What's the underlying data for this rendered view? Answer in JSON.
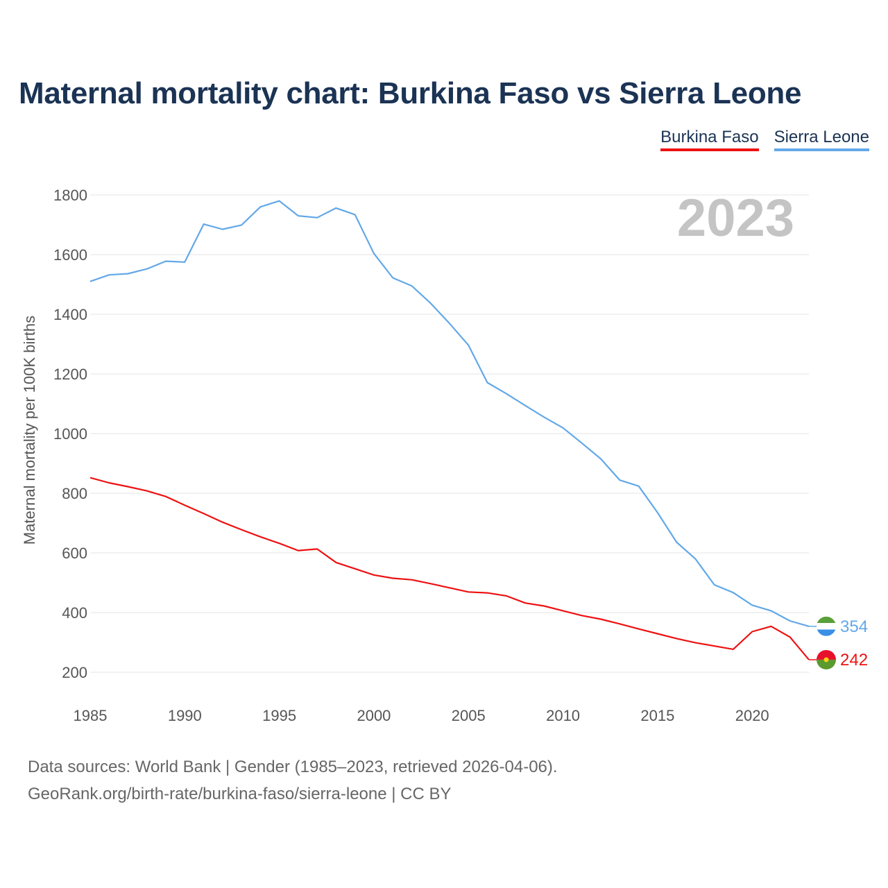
{
  "title": "Maternal mortality chart: Burkina Faso vs Sierra Leone",
  "legend": [
    {
      "label": "Burkina Faso",
      "color": "#ee1111"
    },
    {
      "label": "Sierra Leone",
      "color": "#62a8e8"
    }
  ],
  "year_label": "2023",
  "footer": {
    "line1": "Data sources: World Bank | Gender (1985–2023, retrieved 2026-04-06).",
    "line2": "GeoRank.org/birth-rate/burkina-faso/sierra-leone | CC BY"
  },
  "chart_data": {
    "type": "line",
    "title": "Maternal mortality chart: Burkina Faso vs Sierra Leone",
    "xlabel": "",
    "ylabel": "Maternal mortality per 100K births",
    "xlim": [
      1985,
      2023
    ],
    "ylim": [
      200,
      1800
    ],
    "x_ticks": [
      1985,
      1990,
      1995,
      2000,
      2005,
      2010,
      2015,
      2020
    ],
    "y_ticks": [
      200,
      400,
      600,
      800,
      1000,
      1200,
      1400,
      1600,
      1800
    ],
    "x": [
      1985,
      1986,
      1987,
      1988,
      1989,
      1990,
      1991,
      1992,
      1993,
      1994,
      1995,
      1996,
      1997,
      1998,
      1999,
      2000,
      2001,
      2002,
      2003,
      2004,
      2005,
      2006,
      2007,
      2008,
      2009,
      2010,
      2011,
      2012,
      2013,
      2014,
      2015,
      2016,
      2017,
      2018,
      2019,
      2020,
      2021,
      2022,
      2023
    ],
    "series": [
      {
        "name": "Sierra Leone",
        "color": "#62a8e8",
        "end_label": "354",
        "values": [
          1510,
          1532,
          1536,
          1552,
          1578,
          1575,
          1702,
          1685,
          1699,
          1760,
          1780,
          1730,
          1724,
          1756,
          1734,
          1604,
          1522,
          1495,
          1437,
          1369,
          1296,
          1171,
          1134,
          1094,
          1055,
          1019,
          968,
          915,
          844,
          824,
          735,
          636,
          580,
          493,
          467,
          425,
          406,
          372,
          354
        ]
      },
      {
        "name": "Burkina Faso",
        "color": "#ee1111",
        "end_label": "242",
        "values": [
          852,
          835,
          822,
          808,
          789,
          760,
          732,
          703,
          678,
          654,
          632,
          608,
          613,
          568,
          547,
          526,
          515,
          510,
          497,
          483,
          469,
          466,
          456,
          432,
          422,
          406,
          390,
          378,
          362,
          345,
          329,
          313,
          299,
          288,
          277,
          336,
          354,
          318,
          242
        ]
      }
    ]
  }
}
